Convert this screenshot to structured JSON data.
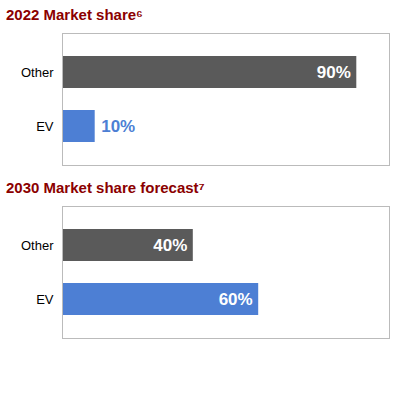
{
  "chart_data": [
    {
      "type": "bar",
      "title": "2022 Market share⁶",
      "orientation": "horizontal",
      "categories": [
        "Other",
        "EV"
      ],
      "values": [
        90,
        10
      ],
      "value_labels": [
        "90%",
        "10%"
      ],
      "colors": [
        "#5a5a5a",
        "#4d7fd4"
      ],
      "xlim": [
        0,
        100
      ],
      "data_labels": true,
      "tick_labels": "y"
    },
    {
      "type": "bar",
      "title": "2030 Market share forecast⁷",
      "orientation": "horizontal",
      "categories": [
        "Other",
        "EV"
      ],
      "values": [
        40,
        60
      ],
      "value_labels": [
        "40%",
        "60%"
      ],
      "colors": [
        "#5a5a5a",
        "#4d7fd4"
      ],
      "xlim": [
        0,
        100
      ],
      "data_labels": true,
      "tick_labels": "y"
    }
  ]
}
